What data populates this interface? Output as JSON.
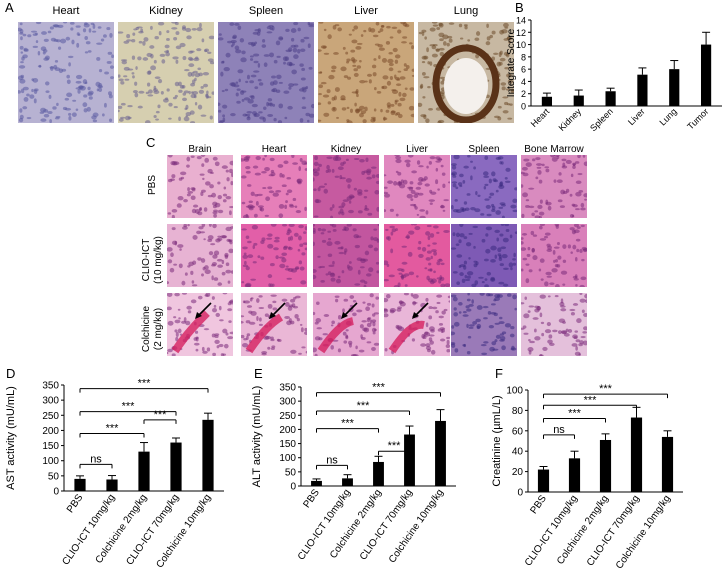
{
  "panel_letters": {
    "a": "A",
    "b": "B",
    "c": "C",
    "d": "D",
    "e": "E",
    "f": "F"
  },
  "ihc": {
    "tiles": [
      {
        "label": "Heart",
        "bg": "#b7b2d2",
        "spot": "#5a5aa0"
      },
      {
        "label": "Kidney",
        "bg": "#d6cfb0",
        "spot": "#6a6090"
      },
      {
        "label": "Spleen",
        "bg": "#8e82b8",
        "spot": "#4c3f88"
      },
      {
        "label": "Liver",
        "bg": "#c9a67a",
        "spot": "#7a4a2a"
      },
      {
        "label": "Lung",
        "bg": "#c7b8a2",
        "spot": "#6b4a2a"
      }
    ]
  },
  "he": {
    "columns": [
      "Brain",
      "Heart",
      "Kidney",
      "Liver",
      "Spleen",
      "Bone Marrow"
    ],
    "rows": [
      {
        "line1": "PBS",
        "line2": ""
      },
      {
        "line1": "CLIO-ICT",
        "line2": "(10 mg/kg)"
      },
      {
        "line1": "Colchicine",
        "line2": "(2 mg/kg)"
      }
    ],
    "colors": [
      [
        "#e9b0d0",
        "#e67fb9",
        "#c65aa0",
        "#e088bf",
        "#8a6ac0",
        "#d98bbf"
      ],
      [
        "#e7b3d3",
        "#e25fa8",
        "#c2569f",
        "#e35a9f",
        "#7e5ab5",
        "#d980ba"
      ],
      [
        "#f0c6df",
        "#eab7d6",
        "#e6a7d0",
        "#e9b6d8",
        "#9a7ab8",
        "#e4c0db"
      ]
    ]
  },
  "chart_data": [
    {
      "panel": "B",
      "type": "bar",
      "categories": [
        "Heart",
        "Kidney",
        "Spleen",
        "Liver",
        "Lung",
        "Tumor"
      ],
      "values": [
        1.5,
        1.7,
        2.4,
        5.1,
        6,
        10
      ],
      "errors": [
        0.6,
        0.9,
        0.5,
        1.1,
        1.4,
        2
      ],
      "ylabel": "Integrate Score",
      "ylim": [
        0,
        14
      ],
      "yticks": [
        "0",
        "2",
        "4",
        "6",
        "8",
        "10",
        "12",
        "14"
      ]
    },
    {
      "panel": "D",
      "type": "bar",
      "categories": [
        "PBS",
        "CLIO-ICT 10mg/kg",
        "Colchicine 2mg/kg",
        "CLIO-ICT 70mg/kg",
        "Colchicine 10mg/kg"
      ],
      "values": [
        40,
        38,
        130,
        160,
        235
      ],
      "errors": [
        10,
        13,
        30,
        15,
        22
      ],
      "ylabel": "AST activity (mU/mL)",
      "ylim": [
        0,
        350
      ],
      "yticks": [
        "0",
        "50",
        "100",
        "150",
        "200",
        "250",
        "300",
        "350"
      ],
      "annotations": [
        "ns",
        "***",
        "***",
        "***",
        "***"
      ]
    },
    {
      "panel": "E",
      "type": "bar",
      "categories": [
        "PBS",
        "CLIO-ICT 10mg/kg",
        "Colchicine 2mg/kg",
        "CLIO-ICT 70mg/kg",
        "Colchicine 10mg/kg"
      ],
      "values": [
        18,
        27,
        85,
        182,
        230
      ],
      "errors": [
        7,
        13,
        20,
        30,
        40
      ],
      "ylabel": "ALT activity (mU/mL)",
      "ylim": [
        0,
        350
      ],
      "yticks": [
        "0",
        "50",
        "100",
        "150",
        "200",
        "250",
        "300",
        "350"
      ],
      "annotations": [
        "ns",
        "***",
        "***",
        "***",
        "***"
      ]
    },
    {
      "panel": "F",
      "type": "bar",
      "categories": [
        "PBS",
        "CLIO-ICT 10mg/kg",
        "Colchicine 2mg/kg",
        "CLIO-ICT 70mg/kg",
        "Colchicine 10mg/kg"
      ],
      "values": [
        22,
        33,
        51,
        73,
        54
      ],
      "errors": [
        3,
        7,
        6,
        10,
        6
      ],
      "ylabel": "Creatinine (µmL/L)",
      "ylim": [
        0,
        100
      ],
      "yticks": [
        "0",
        "20",
        "40",
        "60",
        "80",
        "100"
      ],
      "annotations": [
        "ns",
        "***",
        "***",
        "***"
      ]
    }
  ]
}
